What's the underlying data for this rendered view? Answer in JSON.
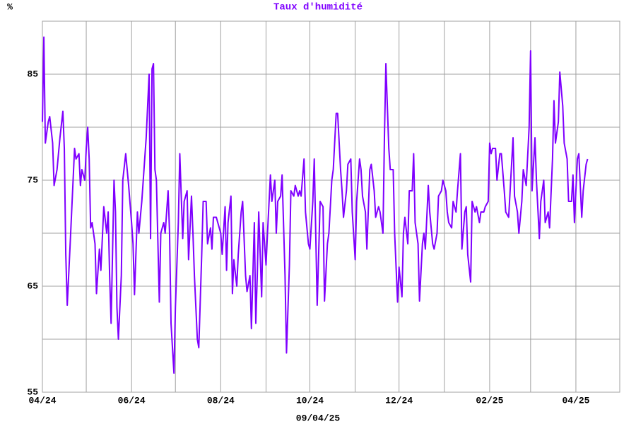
{
  "chart_data": {
    "type": "line",
    "title": "Taux d'humidité",
    "ylabel": "%",
    "date": "09/04/25",
    "color": "#7f00ff",
    "grid": true,
    "xlim": [
      0,
      395
    ],
    "ylim": [
      55,
      90
    ],
    "xticks": [
      {
        "value": 0,
        "label": "04/24"
      },
      {
        "value": 61,
        "label": "06/24"
      },
      {
        "value": 122,
        "label": "08/24"
      },
      {
        "value": 183,
        "label": "10/24"
      },
      {
        "value": 244,
        "label": "12/24"
      },
      {
        "value": 306,
        "label": "02/25"
      },
      {
        "value": 365,
        "label": "04/25"
      }
    ],
    "minor_xticks": [
      30,
      91,
      153,
      214,
      275,
      334
    ],
    "yticks": [
      55,
      65,
      75,
      85
    ],
    "minor_yticks": [
      60,
      70,
      80,
      90
    ],
    "x": [
      0,
      1,
      2,
      4,
      5,
      7,
      8,
      10,
      12,
      14,
      15,
      16,
      17,
      19,
      21,
      22,
      23,
      25,
      26,
      27,
      29,
      30,
      31,
      32,
      33,
      34,
      36,
      37,
      39,
      40,
      42,
      44,
      45,
      46,
      47,
      49,
      50,
      51,
      52,
      54,
      55,
      57,
      58,
      59,
      61,
      62,
      63,
      65,
      66,
      68,
      69,
      71,
      73,
      74,
      75,
      76,
      77,
      78,
      80,
      81,
      83,
      84,
      86,
      87,
      88,
      90,
      91,
      93,
      94,
      96,
      97,
      99,
      100,
      102,
      103,
      104,
      106,
      107,
      109,
      110,
      112,
      113,
      115,
      116,
      117,
      119,
      120,
      122,
      123,
      125,
      126,
      127,
      129,
      130,
      131,
      133,
      134,
      136,
      137,
      139,
      140,
      142,
      143,
      145,
      146,
      147,
      148,
      150,
      151,
      153,
      154,
      156,
      157,
      159,
      160,
      161,
      163,
      164,
      166,
      167,
      169,
      170,
      172,
      173,
      175,
      176,
      177,
      179,
      180,
      182,
      183,
      185,
      186,
      188,
      189,
      190,
      192,
      193,
      195,
      196,
      198,
      199,
      201,
      202,
      204,
      205,
      206,
      208,
      209,
      211,
      212,
      214,
      215,
      217,
      218,
      219,
      221,
      222,
      224,
      225,
      227,
      228,
      230,
      231,
      233,
      234,
      235,
      237,
      238,
      240,
      241,
      243,
      244,
      246,
      247,
      248,
      250,
      251,
      253,
      254,
      255,
      257,
      258,
      260,
      261,
      262,
      264,
      265,
      267,
      268,
      270,
      271,
      273,
      274,
      276,
      277,
      278,
      280,
      281,
      283,
      284,
      286,
      287,
      289,
      290,
      291,
      293,
      294,
      296,
      297,
      299,
      300,
      302,
      303,
      305,
      306,
      307,
      308,
      310,
      311,
      313,
      314,
      316,
      317,
      319,
      320,
      322,
      323,
      325,
      326,
      328,
      329,
      331,
      333,
      334,
      335,
      337,
      338,
      340,
      341,
      343,
      344,
      346,
      347,
      349,
      350,
      351,
      353,
      354,
      356,
      357,
      359,
      360,
      362,
      363,
      364,
      366,
      367,
      369,
      370,
      372,
      373
    ],
    "values": [
      80.5,
      88.5,
      78.5,
      80.5,
      81,
      78.5,
      74.5,
      76,
      79,
      81.5,
      78,
      68,
      63.2,
      69,
      75,
      78,
      77,
      77.5,
      74.5,
      76,
      75,
      78,
      80,
      77,
      70.5,
      71,
      69,
      64.3,
      68.5,
      66.5,
      72.5,
      70,
      72,
      66,
      61.5,
      75,
      72,
      63,
      60,
      66,
      75,
      77.5,
      76,
      74.5,
      71,
      69,
      64.2,
      72,
      70,
      73,
      75,
      79,
      85,
      69.5,
      85.5,
      86,
      76,
      75,
      63.5,
      70,
      71,
      70,
      74,
      70,
      61.5,
      56.8,
      63,
      71,
      77.5,
      69.5,
      73,
      74,
      67.5,
      73.5,
      70,
      66,
      60,
      59.2,
      68,
      73,
      73,
      69,
      70.5,
      68.5,
      71.5,
      71.5,
      71,
      70,
      68,
      72.5,
      66.5,
      71,
      73.5,
      64.3,
      67.5,
      65,
      68,
      72,
      73,
      66,
      64.5,
      66,
      61,
      71,
      61.5,
      66,
      72,
      64,
      71,
      67,
      70,
      75.5,
      73,
      75,
      70,
      73,
      73.5,
      75.5,
      66,
      58.7,
      67,
      74,
      73.5,
      74.5,
      73.5,
      74,
      73.5,
      77,
      72,
      69,
      68.5,
      73,
      77,
      63.2,
      68,
      73,
      72.5,
      63.6,
      69,
      70,
      75,
      76,
      81.3,
      81.3,
      76,
      74,
      71.5,
      74,
      76.5,
      77,
      72,
      67.5,
      73,
      77,
      76,
      73.5,
      72,
      68.5,
      76,
      76.5,
      74,
      71.5,
      72.5,
      72,
      70,
      79,
      86,
      78,
      76,
      76,
      70,
      63.5,
      66.8,
      64,
      70,
      71.5,
      69,
      74,
      74,
      77.5,
      71,
      69,
      63.6,
      69,
      70,
      68.5,
      74.5,
      72,
      69,
      68.5,
      70,
      73.5,
      74,
      75,
      74,
      72,
      71,
      70.5,
      73,
      72,
      74,
      77.5,
      68.5,
      72,
      72.5,
      68,
      65.4,
      73,
      72,
      72.5,
      71,
      72,
      72,
      72.5,
      73,
      78.5,
      77.5,
      78,
      78,
      75,
      77.5,
      77.5,
      74,
      72,
      71.5,
      74,
      79,
      73.5,
      72,
      70,
      73,
      76,
      74.5,
      80,
      87.2,
      74,
      79,
      75,
      69.5,
      73,
      75,
      71,
      72,
      70.5,
      77,
      82.5,
      78.5,
      80.5,
      85.2,
      82,
      78.5,
      77,
      73,
      73,
      75.5,
      71,
      77,
      77.5,
      71.5,
      74,
      76.5,
      77
    ]
  }
}
